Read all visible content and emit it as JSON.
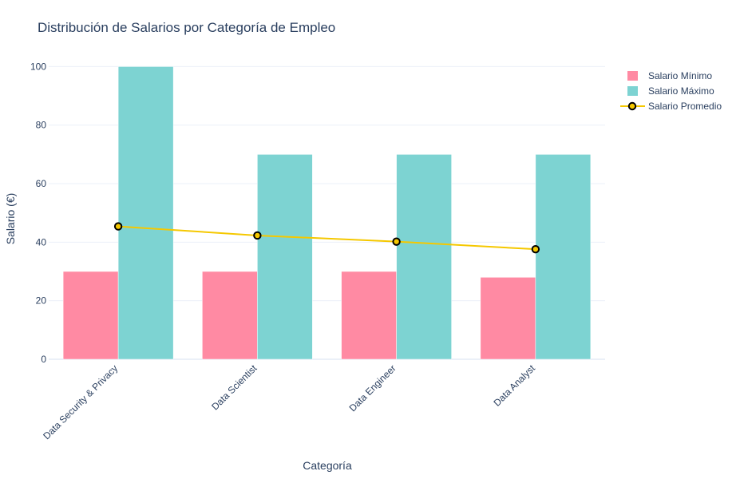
{
  "chart_data": {
    "type": "bar",
    "title": "Distribución de Salarios por Categoría de Empleo",
    "xlabel": "Categoría",
    "ylabel": "Salario (€)",
    "categories": [
      "Data Security & Privacy",
      "Data Scientist",
      "Data Engineer",
      "Data Analyst"
    ],
    "series": [
      {
        "name": "Salario Mínimo",
        "type": "bar",
        "color": "#ff8aa3",
        "values": [
          30,
          30,
          30,
          28
        ]
      },
      {
        "name": "Salario Máximo",
        "type": "bar",
        "color": "#7dd3d2",
        "values": [
          100,
          70,
          70,
          70
        ]
      },
      {
        "name": "Salario Promedio",
        "type": "line",
        "color": "#f5c800",
        "marker_fill": "#f5c800",
        "marker_edge": "#000000",
        "values": [
          45.4,
          42.3,
          40.2,
          37.6
        ]
      }
    ],
    "yticks": [
      0,
      20,
      40,
      60,
      80,
      100
    ],
    "ylim": [
      0,
      105.3
    ],
    "grid": true,
    "legend_position": "top-right"
  }
}
